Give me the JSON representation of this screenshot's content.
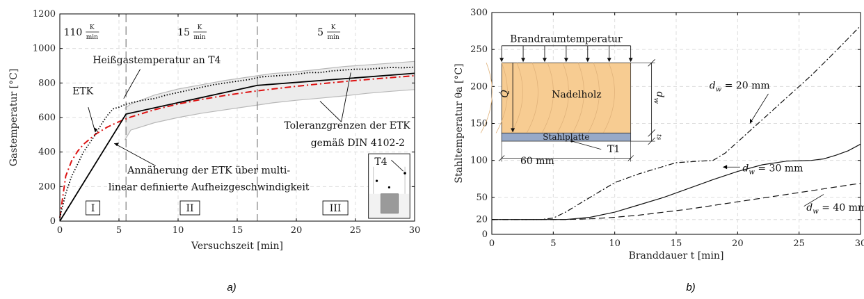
{
  "chart_data": [
    {
      "type": "line",
      "panel_label": "a)",
      "xlabel": "Versuchszeit [min]",
      "ylabel": "Gastemperatur [°C]",
      "xlim": [
        0,
        30
      ],
      "ylim": [
        0,
        1200
      ],
      "xticks": [
        "0",
        "5",
        "10",
        "15",
        "20",
        "25",
        "30"
      ],
      "yticks": [
        "0",
        "200",
        "400",
        "600",
        "800",
        "1000",
        "1200"
      ],
      "grid": true,
      "phase_boundaries": [
        5.6,
        16.7
      ],
      "phases": [
        {
          "label": "I",
          "x": 2.8
        },
        {
          "label": "II",
          "x": 11
        },
        {
          "label": "III",
          "x": 23.3
        }
      ],
      "rates": [
        {
          "value": "110",
          "x": 1.9
        },
        {
          "value": "15",
          "x": 11
        },
        {
          "value": "5",
          "x": 22.3
        }
      ],
      "rate_unit_num": "K",
      "rate_unit_den": "min",
      "series": [
        {
          "key": "etk",
          "color": "#dd1111",
          "x": [
            0,
            0.5,
            1,
            1.5,
            2,
            3,
            4,
            5,
            6,
            8,
            10,
            12,
            14,
            16,
            18,
            20,
            22,
            24,
            26,
            28,
            30
          ],
          "y": [
            20,
            261,
            349,
            404,
            445,
            502,
            544,
            576,
            603,
            645,
            678,
            705,
            728,
            748,
            765,
            781,
            795,
            808,
            820,
            831,
            842
          ]
        },
        {
          "key": "multilinear",
          "color": "#000000",
          "x": [
            0,
            5.6,
            16.7,
            30
          ],
          "y": [
            0,
            620,
            786,
            856
          ]
        },
        {
          "key": "measured",
          "color": "#000000",
          "x": [
            0,
            0.5,
            1,
            1.5,
            2,
            2.5,
            3,
            3.5,
            4,
            4.5,
            5,
            5.5,
            6,
            7,
            8,
            9,
            10,
            11,
            12,
            13,
            14,
            15,
            16,
            17,
            18,
            19,
            20,
            21,
            22,
            23,
            24,
            25,
            26,
            27,
            28,
            29,
            30
          ],
          "y": [
            20,
            160,
            260,
            330,
            400,
            450,
            500,
            560,
            610,
            650,
            660,
            675,
            685,
            700,
            710,
            730,
            745,
            760,
            775,
            790,
            800,
            810,
            820,
            835,
            840,
            845,
            850,
            860,
            860,
            870,
            875,
            880,
            880,
            885,
            890,
            888,
            892
          ]
        },
        {
          "key": "tol_upper",
          "color": "#b8b8b8",
          "x": [
            5.5,
            6,
            8,
            10,
            12,
            14,
            16,
            18,
            20,
            22,
            24,
            26,
            28,
            30
          ],
          "y": [
            653,
            678,
            730,
            765,
            790,
            815,
            835,
            855,
            865,
            880,
            895,
            905,
            915,
            925
          ]
        },
        {
          "key": "tol_lower",
          "color": "#b8b8b8",
          "x": [
            5.5,
            6,
            8,
            10,
            12,
            14,
            16,
            18,
            20,
            22,
            24,
            26,
            28,
            30
          ],
          "y": [
            470,
            527,
            570,
            600,
            625,
            645,
            665,
            685,
            700,
            712,
            725,
            740,
            752,
            762
          ]
        }
      ],
      "annotations": {
        "heissgas": "Heißgastemperatur an T4",
        "etk": "ETK",
        "toleranz_1": "Toleranzgrenzen der ETK",
        "toleranz_2": "gemäß DIN 4102-2",
        "annaeherung_1": "Annäherung der ETK über multi-",
        "annaeherung_2": "linear definierte Aufheizgeschwindigkeit",
        "inset_label": "T4"
      }
    },
    {
      "type": "line",
      "panel_label": "b)",
      "xlabel": "Branddauer t [min]",
      "ylabel": "Stahltemperatur θa [°C]",
      "xlim": [
        0,
        30
      ],
      "ylim": [
        0,
        300
      ],
      "xticks": [
        "0",
        "5",
        "10",
        "15",
        "20",
        "25",
        "30"
      ],
      "yticks": [
        "0",
        "20",
        "50",
        "100",
        "150",
        "200",
        "250",
        "300"
      ],
      "grid": true,
      "series": [
        {
          "key": "dw20",
          "label": "= 20 mm",
          "style": "dashdot",
          "x": [
            0,
            4,
            5,
            6,
            8,
            10,
            12,
            14,
            15,
            16,
            17,
            18,
            19,
            20,
            22,
            24,
            26,
            28,
            30
          ],
          "y": [
            20,
            20,
            22,
            30,
            50,
            70,
            82,
            92,
            97,
            98,
            99,
            100,
            110,
            125,
            155,
            185,
            215,
            248,
            282
          ]
        },
        {
          "key": "dw30",
          "label": "= 30 mm",
          "style": "solid",
          "x": [
            0,
            6,
            8,
            10,
            12,
            14,
            16,
            18,
            20,
            22,
            24,
            26,
            27,
            28,
            29,
            30
          ],
          "y": [
            20,
            20,
            23,
            30,
            40,
            50,
            62,
            74,
            85,
            94,
            99,
            100,
            102,
            107,
            113,
            122
          ]
        },
        {
          "key": "dw40",
          "label": "= 40 mm",
          "style": "dashed",
          "x": [
            0,
            6,
            8,
            10,
            12,
            14,
            16,
            18,
            20,
            22,
            24,
            26,
            28,
            30
          ],
          "y": [
            20,
            20,
            21,
            23,
            26,
            30,
            34,
            39,
            44,
            49,
            54,
            59,
            64,
            69
          ]
        }
      ],
      "annotations": {
        "brandraum": "Brandraumtemperatur",
        "nadelholz": "Nadelholz",
        "stahlplatte": "Stahlplatte",
        "t1": "T1",
        "width": "60 mm",
        "q": "Q̇",
        "dw": "dw",
        "ts": "ts"
      }
    }
  ]
}
